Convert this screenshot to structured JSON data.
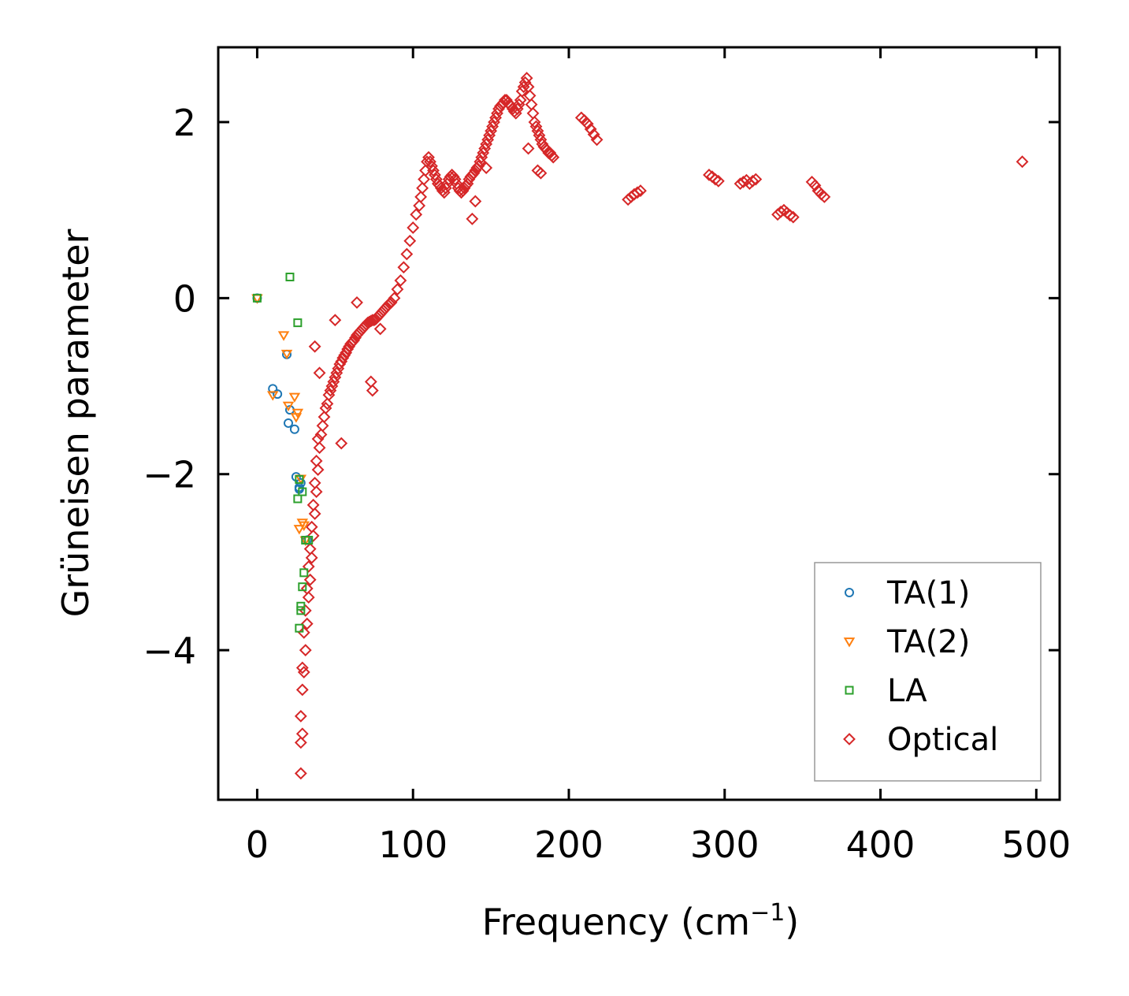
{
  "chart_data": {
    "type": "scatter",
    "title": "",
    "xlabel": "Frequency (cm",
    "xlabel_sup": "−1",
    "xlabel_end": ")",
    "ylabel": "Grüneisen parameter",
    "xlim": [
      -25,
      515
    ],
    "ylim": [
      -5.7,
      2.85
    ],
    "xticks": [
      0,
      100,
      200,
      300,
      400,
      500
    ],
    "xtick_labels": [
      "0",
      "100",
      "200",
      "300",
      "400",
      "500"
    ],
    "yticks": [
      -4,
      -2,
      0,
      2
    ],
    "ytick_labels": [
      "−4",
      "−2",
      "0",
      "2"
    ],
    "legend_position": "lower-right",
    "series": [
      {
        "name": "TA(1)",
        "marker": "circle",
        "color": "#1f77b4",
        "x": [
          0,
          10,
          13,
          19,
          20,
          21,
          24,
          25,
          27,
          27,
          28,
          32
        ],
        "y": [
          0,
          -1.03,
          -1.09,
          -0.64,
          -1.42,
          -1.27,
          -1.49,
          -2.03,
          -2.15,
          -2.17,
          -2.1,
          -2.75
        ]
      },
      {
        "name": "TA(2)",
        "marker": "triangle-down",
        "color": "#ff7f0e",
        "x": [
          0,
          10,
          17,
          19,
          20,
          24,
          25,
          26,
          27,
          28,
          29,
          30,
          31
        ],
        "y": [
          0,
          -1.1,
          -0.42,
          -0.63,
          -1.22,
          -1.12,
          -1.35,
          -1.3,
          -2.62,
          -2.05,
          -2.55,
          -2.58,
          -2.75
        ]
      },
      {
        "name": "LA",
        "marker": "square",
        "color": "#2ca02c",
        "x": [
          0,
          21,
          26,
          26,
          27,
          27,
          28,
          28,
          29,
          29,
          30,
          31,
          33
        ],
        "y": [
          0,
          0.24,
          -0.28,
          -2.28,
          -2.06,
          -3.75,
          -3.5,
          -3.55,
          -3.28,
          -2.2,
          -3.12,
          -2.75,
          -2.75
        ]
      },
      {
        "name": "Optical",
        "marker": "diamond",
        "color": "#d62728",
        "x": [
          28,
          28,
          29,
          28,
          29,
          30,
          29,
          31,
          30,
          32,
          31,
          33,
          32,
          34,
          33,
          35,
          34,
          36,
          35,
          37,
          36,
          38,
          37,
          39,
          38,
          40,
          39,
          41,
          42,
          43,
          44,
          45,
          46,
          47,
          48,
          49,
          50,
          51,
          52,
          53,
          54,
          55,
          56,
          57,
          58,
          59,
          60,
          61,
          62,
          63,
          64,
          65,
          66,
          67,
          68,
          69,
          70,
          71,
          72,
          73,
          74,
          75,
          76,
          77,
          78,
          79,
          80,
          81,
          82,
          83,
          84,
          85,
          86,
          88,
          90,
          92,
          94,
          96,
          98,
          100,
          102,
          104,
          105,
          106,
          107,
          108,
          109,
          110,
          111,
          112,
          113,
          114,
          115,
          116,
          117,
          118,
          119,
          120,
          121,
          122,
          123,
          124,
          125,
          126,
          127,
          128,
          129,
          130,
          131,
          132,
          133,
          134,
          135,
          136,
          137,
          138,
          139,
          140,
          141,
          142,
          143,
          144,
          145,
          146,
          147,
          148,
          149,
          150,
          151,
          152,
          153,
          154,
          155,
          156,
          157,
          158,
          159,
          160,
          161,
          162,
          163,
          164,
          165,
          166,
          167,
          168,
          169,
          170,
          171,
          172,
          173,
          174,
          175,
          176,
          177,
          178,
          179,
          180,
          181,
          182,
          183,
          184,
          185,
          186,
          187,
          188,
          189,
          190,
          208,
          210,
          212,
          214,
          216,
          218,
          238,
          240,
          242,
          244,
          246,
          290,
          292,
          294,
          296,
          310,
          312,
          314,
          316,
          318,
          320,
          334,
          336,
          338,
          340,
          342,
          344,
          356,
          358,
          360,
          362,
          364,
          491,
          138,
          140,
          147,
          174,
          180,
          182,
          37,
          40,
          50,
          54,
          64,
          73,
          74,
          79
        ],
        "y": [
          -5.4,
          -5.05,
          -4.95,
          -4.75,
          -4.45,
          -4.25,
          -4.2,
          -4.0,
          -3.8,
          -3.7,
          -3.55,
          -3.4,
          -3.3,
          -3.2,
          -3.05,
          -2.95,
          -2.85,
          -2.7,
          -2.6,
          -2.45,
          -2.35,
          -2.2,
          -2.1,
          -1.95,
          -1.85,
          -1.7,
          -1.6,
          -1.55,
          -1.45,
          -1.35,
          -1.25,
          -1.2,
          -1.1,
          -1.05,
          -1.0,
          -0.95,
          -0.9,
          -0.85,
          -0.8,
          -0.75,
          -0.72,
          -0.68,
          -0.65,
          -0.62,
          -0.58,
          -0.55,
          -0.52,
          -0.5,
          -0.48,
          -0.45,
          -0.42,
          -0.4,
          -0.38,
          -0.36,
          -0.34,
          -0.32,
          -0.3,
          -0.28,
          -0.27,
          -0.26,
          -0.25,
          -0.25,
          -0.24,
          -0.22,
          -0.2,
          -0.18,
          -0.16,
          -0.14,
          -0.12,
          -0.1,
          -0.08,
          -0.06,
          -0.05,
          0.0,
          0.1,
          0.2,
          0.35,
          0.5,
          0.65,
          0.8,
          0.95,
          1.05,
          1.15,
          1.25,
          1.35,
          1.45,
          1.55,
          1.6,
          1.55,
          1.5,
          1.45,
          1.4,
          1.35,
          1.3,
          1.28,
          1.25,
          1.22,
          1.2,
          1.25,
          1.3,
          1.35,
          1.38,
          1.4,
          1.38,
          1.35,
          1.3,
          1.25,
          1.22,
          1.2,
          1.22,
          1.25,
          1.28,
          1.3,
          1.35,
          1.38,
          1.4,
          1.42,
          1.45,
          1.48,
          1.5,
          1.55,
          1.6,
          1.65,
          1.7,
          1.75,
          1.8,
          1.85,
          1.9,
          1.95,
          2.0,
          2.05,
          2.1,
          2.15,
          2.18,
          2.2,
          2.22,
          2.25,
          2.25,
          2.22,
          2.2,
          2.18,
          2.15,
          2.12,
          2.1,
          2.15,
          2.2,
          2.25,
          2.35,
          2.4,
          2.45,
          2.5,
          2.4,
          2.3,
          2.2,
          2.1,
          2.0,
          1.95,
          1.9,
          1.85,
          1.8,
          1.75,
          1.72,
          1.7,
          1.68,
          1.65,
          1.65,
          1.62,
          1.6,
          2.05,
          2.02,
          1.98,
          1.92,
          1.86,
          1.8,
          1.12,
          1.15,
          1.18,
          1.2,
          1.22,
          1.4,
          1.38,
          1.35,
          1.33,
          1.3,
          1.32,
          1.34,
          1.3,
          1.33,
          1.35,
          0.95,
          0.98,
          1.0,
          0.97,
          0.94,
          0.92,
          1.32,
          1.28,
          1.22,
          1.18,
          1.15,
          1.55,
          0.9,
          1.1,
          1.48,
          1.7,
          1.45,
          1.42,
          -0.55,
          -0.85,
          -0.25,
          -1.65,
          -0.05,
          -0.95,
          -1.05,
          -0.35
        ]
      }
    ]
  }
}
